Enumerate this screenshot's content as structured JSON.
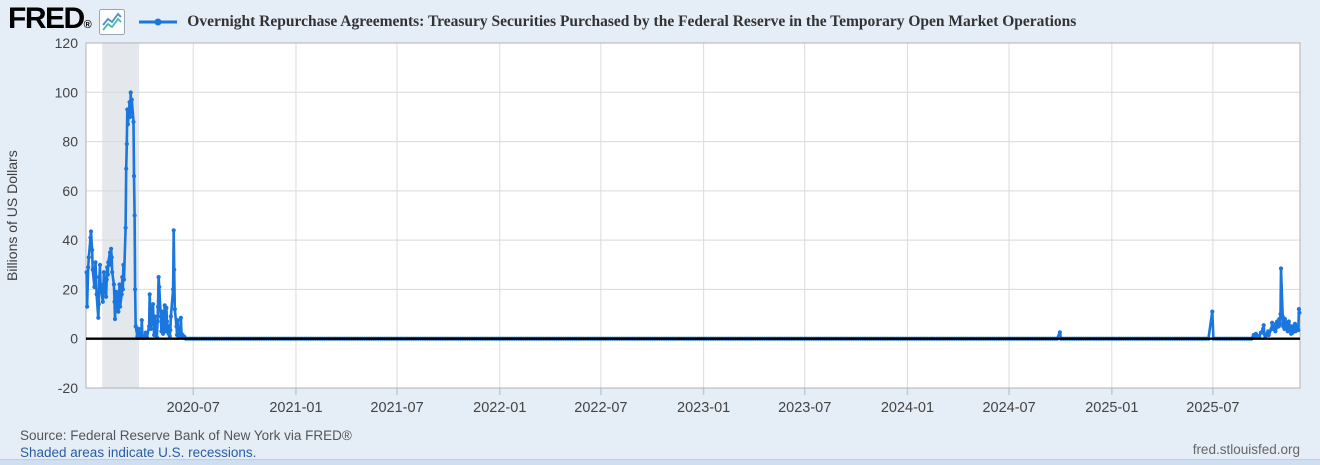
{
  "header": {
    "logo_text": "FRED",
    "logo_mark": "®",
    "series_title": "Overnight Repurchase Agreements: Treasury Securities Purchased by the Federal Reserve in the Temporary Open Market Operations"
  },
  "footer": {
    "source": "Source: Federal Reserve Bank of New York via FRED®",
    "recession_note": "Shaded areas indicate U.S. recessions.",
    "site_link": "fred.stlouisfed.org"
  },
  "chart_data": {
    "type": "line",
    "title": "Overnight Repurchase Agreements: Treasury Securities Purchased by the Federal Reserve in the Temporary Open Market Operations",
    "series_name": "Overnight Repurchase Agreements: Treasury Securities Purchased by the Federal Reserve in the Temporary Open Market Operations",
    "xlabel": "",
    "ylabel": "Billions of US Dollars",
    "ylim": [
      -20,
      120
    ],
    "yticks": [
      120,
      100,
      80,
      60,
      40,
      20,
      0,
      -20
    ],
    "x_domain": [
      "2019-12-22",
      "2025-12-04"
    ],
    "xticks": [
      {
        "date": "2020-07-01",
        "label": "2020-07"
      },
      {
        "date": "2021-01-01",
        "label": "2021-01"
      },
      {
        "date": "2021-07-01",
        "label": "2021-07"
      },
      {
        "date": "2022-01-01",
        "label": "2022-01"
      },
      {
        "date": "2022-07-01",
        "label": "2022-07"
      },
      {
        "date": "2023-01-01",
        "label": "2023-01"
      },
      {
        "date": "2023-07-01",
        "label": "2023-07"
      },
      {
        "date": "2024-01-01",
        "label": "2024-01"
      },
      {
        "date": "2024-07-01",
        "label": "2024-07"
      },
      {
        "date": "2025-01-01",
        "label": "2025-01"
      },
      {
        "date": "2025-07-01",
        "label": "2025-07"
      }
    ],
    "grid": true,
    "legend_position": "top",
    "line_color": "#1b76de",
    "zero_line_color": "#000000",
    "gridline_color": "#d9d9d9",
    "recession_band": {
      "start": "2020-01-20",
      "end": "2020-03-26",
      "color": "#e4e8ec"
    },
    "points": [
      [
        "2019-12-23",
        27
      ],
      [
        "2019-12-24",
        13
      ],
      [
        "2019-12-26",
        29
      ],
      [
        "2019-12-27",
        33
      ],
      [
        "2019-12-30",
        41
      ],
      [
        "2019-12-31",
        43.5
      ],
      [
        "2020-01-02",
        36
      ],
      [
        "2020-01-03",
        28
      ],
      [
        "2020-01-06",
        21
      ],
      [
        "2020-01-07",
        26
      ],
      [
        "2020-01-08",
        31
      ],
      [
        "2020-01-09",
        25
      ],
      [
        "2020-01-10",
        18
      ],
      [
        "2020-01-13",
        8.5
      ],
      [
        "2020-01-14",
        14
      ],
      [
        "2020-01-15",
        25
      ],
      [
        "2020-01-16",
        30
      ],
      [
        "2020-01-17",
        22
      ],
      [
        "2020-01-21",
        15
      ],
      [
        "2020-01-22",
        20
      ],
      [
        "2020-01-23",
        27
      ],
      [
        "2020-01-24",
        23
      ],
      [
        "2020-01-27",
        17
      ],
      [
        "2020-01-28",
        24
      ],
      [
        "2020-01-29",
        29
      ],
      [
        "2020-01-30",
        26
      ],
      [
        "2020-01-31",
        31
      ],
      [
        "2020-02-03",
        35
      ],
      [
        "2020-02-04",
        30
      ],
      [
        "2020-02-05",
        36.5
      ],
      [
        "2020-02-06",
        33
      ],
      [
        "2020-02-07",
        27
      ],
      [
        "2020-02-10",
        22
      ],
      [
        "2020-02-11",
        15
      ],
      [
        "2020-02-12",
        8
      ],
      [
        "2020-02-13",
        13
      ],
      [
        "2020-02-14",
        19
      ],
      [
        "2020-02-18",
        11
      ],
      [
        "2020-02-19",
        16
      ],
      [
        "2020-02-20",
        22
      ],
      [
        "2020-02-21",
        13
      ],
      [
        "2020-02-24",
        18
      ],
      [
        "2020-02-25",
        25
      ],
      [
        "2020-02-26",
        20
      ],
      [
        "2020-02-27",
        30
      ],
      [
        "2020-02-28",
        24
      ],
      [
        "2020-03-02",
        45
      ],
      [
        "2020-03-03",
        69
      ],
      [
        "2020-03-04",
        79
      ],
      [
        "2020-03-05",
        93
      ],
      [
        "2020-03-06",
        87
      ],
      [
        "2020-03-09",
        96
      ],
      [
        "2020-03-10",
        90
      ],
      [
        "2020-03-11",
        99.9
      ],
      [
        "2020-03-12",
        94
      ],
      [
        "2020-03-13",
        97
      ],
      [
        "2020-03-16",
        88
      ],
      [
        "2020-03-17",
        66
      ],
      [
        "2020-03-18",
        50
      ],
      [
        "2020-03-19",
        20
      ],
      [
        "2020-03-20",
        5
      ],
      [
        "2020-03-23",
        1
      ],
      [
        "2020-03-24",
        0.3
      ],
      [
        "2020-03-25",
        4
      ],
      [
        "2020-03-26",
        1
      ],
      [
        "2020-03-27",
        0.5
      ],
      [
        "2020-03-30",
        2
      ],
      [
        "2020-03-31",
        7.5
      ],
      [
        "2020-04-01",
        1
      ],
      [
        "2020-04-03",
        0.3
      ],
      [
        "2020-04-07",
        2.5
      ],
      [
        "2020-04-09",
        0.5
      ],
      [
        "2020-04-13",
        5
      ],
      [
        "2020-04-14",
        18
      ],
      [
        "2020-04-15",
        12
      ],
      [
        "2020-04-16",
        4
      ],
      [
        "2020-04-17",
        8
      ],
      [
        "2020-04-20",
        14
      ],
      [
        "2020-04-21",
        6
      ],
      [
        "2020-04-22",
        1.5
      ],
      [
        "2020-04-23",
        9
      ],
      [
        "2020-04-24",
        3
      ],
      [
        "2020-04-27",
        0.5
      ],
      [
        "2020-04-28",
        7
      ],
      [
        "2020-04-29",
        13
      ],
      [
        "2020-04-30",
        25
      ],
      [
        "2020-05-01",
        21
      ],
      [
        "2020-05-04",
        9
      ],
      [
        "2020-05-05",
        3
      ],
      [
        "2020-05-06",
        11
      ],
      [
        "2020-05-07",
        5.5
      ],
      [
        "2020-05-08",
        2
      ],
      [
        "2020-05-11",
        13.5
      ],
      [
        "2020-05-12",
        8
      ],
      [
        "2020-05-13",
        3
      ],
      [
        "2020-05-14",
        12.5
      ],
      [
        "2020-05-15",
        7
      ],
      [
        "2020-05-18",
        2
      ],
      [
        "2020-05-19",
        5
      ],
      [
        "2020-05-20",
        1
      ],
      [
        "2020-05-21",
        3.5
      ],
      [
        "2020-05-22",
        9
      ],
      [
        "2020-05-26",
        20
      ],
      [
        "2020-05-27",
        44
      ],
      [
        "2020-05-28",
        28
      ],
      [
        "2020-05-29",
        12
      ],
      [
        "2020-06-01",
        5
      ],
      [
        "2020-06-02",
        1.5
      ],
      [
        "2020-06-03",
        7.5
      ],
      [
        "2020-06-04",
        3
      ],
      [
        "2020-06-05",
        0.8
      ],
      [
        "2020-06-08",
        4
      ],
      [
        "2020-06-09",
        8.5
      ],
      [
        "2020-06-10",
        2
      ],
      [
        "2020-06-11",
        0.5
      ],
      [
        "2020-06-12",
        1.5
      ],
      [
        "2020-06-15",
        0.8
      ],
      [
        "2020-06-16",
        0.3
      ],
      [
        "2024-09-30",
        2.6
      ],
      [
        "2025-06-30",
        11
      ],
      [
        "2025-09-12",
        1.5
      ],
      [
        "2025-09-15",
        0.5
      ],
      [
        "2025-09-16",
        2
      ],
      [
        "2025-09-22",
        1
      ],
      [
        "2025-09-25",
        2.5
      ],
      [
        "2025-09-29",
        4
      ],
      [
        "2025-09-30",
        5.5
      ],
      [
        "2025-10-01",
        2
      ],
      [
        "2025-10-03",
        1
      ],
      [
        "2025-10-08",
        3
      ],
      [
        "2025-10-09",
        1.5
      ],
      [
        "2025-10-14",
        4
      ],
      [
        "2025-10-15",
        6.5
      ],
      [
        "2025-10-16",
        5
      ],
      [
        "2025-10-17",
        4
      ],
      [
        "2025-10-20",
        5
      ],
      [
        "2025-10-21",
        3
      ],
      [
        "2025-10-22",
        6
      ],
      [
        "2025-10-23",
        4.5
      ],
      [
        "2025-10-24",
        7
      ],
      [
        "2025-10-27",
        5
      ],
      [
        "2025-10-28",
        8
      ],
      [
        "2025-10-29",
        6
      ],
      [
        "2025-10-30",
        10
      ],
      [
        "2025-10-31",
        28.5
      ],
      [
        "2025-11-03",
        9
      ],
      [
        "2025-11-04",
        5
      ],
      [
        "2025-11-05",
        7
      ],
      [
        "2025-11-06",
        4
      ],
      [
        "2025-11-07",
        8
      ],
      [
        "2025-11-10",
        6
      ],
      [
        "2025-11-12",
        3
      ],
      [
        "2025-11-13",
        5
      ],
      [
        "2025-11-14",
        7
      ],
      [
        "2025-11-17",
        4
      ],
      [
        "2025-11-18",
        2
      ],
      [
        "2025-11-19",
        3.5
      ],
      [
        "2025-11-20",
        5
      ],
      [
        "2025-11-21",
        2.5
      ],
      [
        "2025-11-24",
        4
      ],
      [
        "2025-11-25",
        6
      ],
      [
        "2025-11-26",
        3
      ],
      [
        "2025-11-28",
        5
      ],
      [
        "2025-12-01",
        3.5
      ],
      [
        "2025-12-02",
        12
      ],
      [
        "2025-12-03",
        10.5
      ]
    ],
    "near_zero_runs": [
      {
        "start": "2020-06-18",
        "end": "2024-09-27",
        "value": 0
      },
      {
        "start": "2024-10-02",
        "end": "2025-06-26",
        "value": 0
      },
      {
        "start": "2025-07-02",
        "end": "2025-09-10",
        "value": 0
      }
    ]
  }
}
